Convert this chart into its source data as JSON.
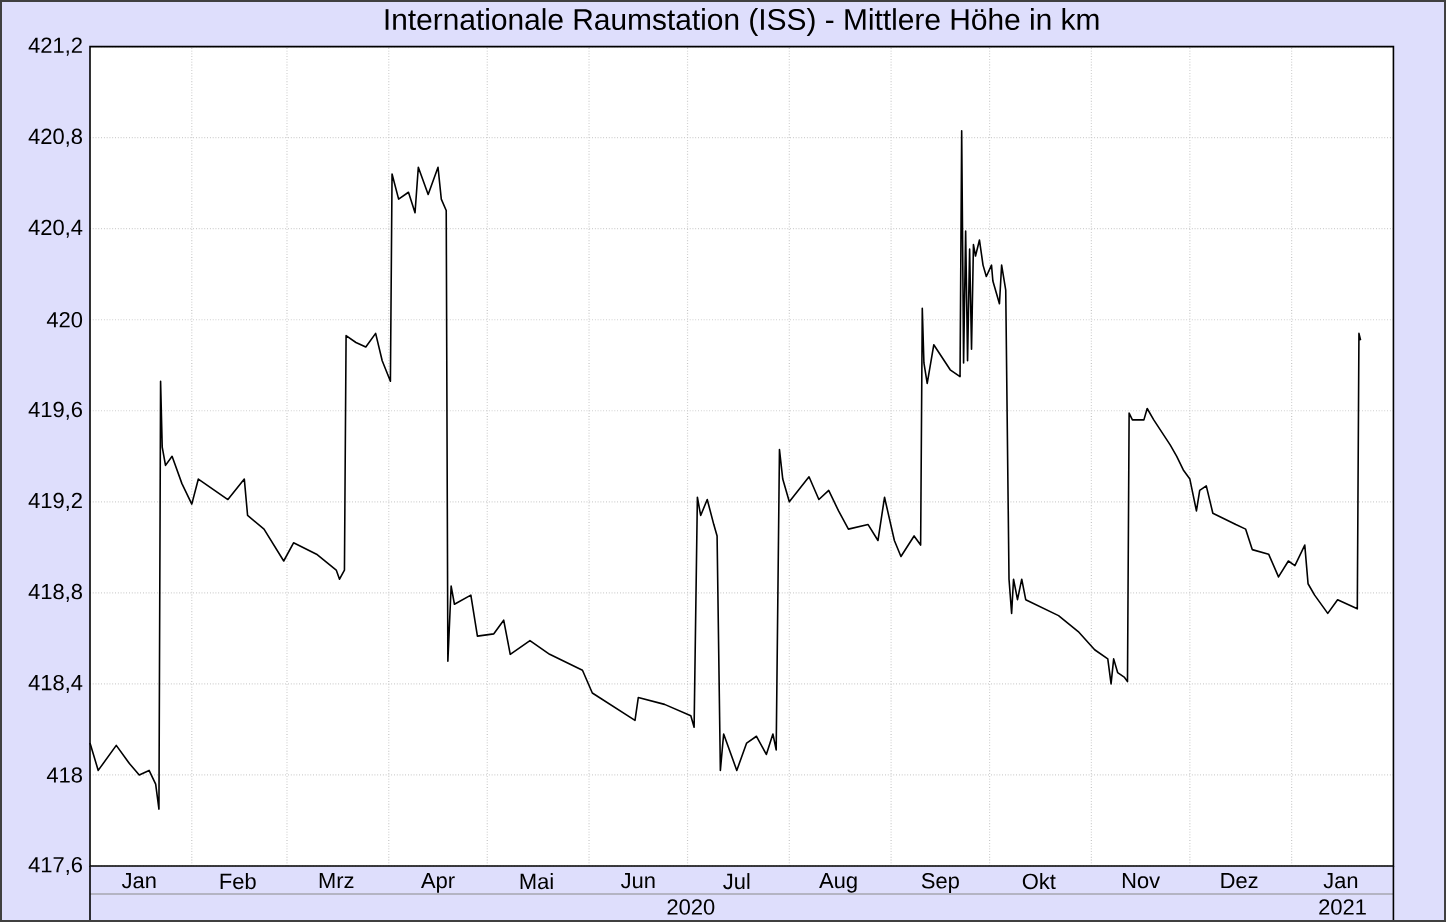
{
  "chart_data": {
    "type": "line",
    "title": "Internationale Raumstation (ISS) - Mittlere Höhe in km",
    "x": [
      "2020-01-01",
      "2020-01-03T12:00",
      "2020-01-09",
      "2020-01-13",
      "2020-01-16",
      "2020-01-19",
      "2020-01-21",
      "2020-01-22",
      "2020-01-22T12:00",
      "2020-01-23",
      "2020-01-24",
      "2020-01-26",
      "2020-01-29",
      "2020-02-01",
      "2020-02-03",
      "2020-02-12",
      "2020-02-17",
      "2020-02-18",
      "2020-02-23",
      "2020-02-29",
      "2020-03-03",
      "2020-03-10",
      "2020-03-16",
      "2020-03-17",
      "2020-03-18T12:00",
      "2020-03-19",
      "2020-03-22",
      "2020-03-25",
      "2020-03-28",
      "2020-03-30",
      "2020-04-01T12:00",
      "2020-04-02",
      "2020-04-04",
      "2020-04-07",
      "2020-04-09",
      "2020-04-10",
      "2020-04-13",
      "2020-04-16",
      "2020-04-17",
      "2020-04-18T12:00",
      "2020-04-19",
      "2020-04-20",
      "2020-04-21",
      "2020-04-26",
      "2020-04-28",
      "2020-05-03",
      "2020-05-06",
      "2020-05-08",
      "2020-05-14",
      "2020-05-20",
      "2020-05-30",
      "2020-06-02",
      "2020-06-15",
      "2020-06-16",
      "2020-06-24",
      "2020-07-02",
      "2020-07-03",
      "2020-07-04",
      "2020-07-05",
      "2020-07-07",
      "2020-07-09",
      "2020-07-10",
      "2020-07-11",
      "2020-07-12",
      "2020-07-16",
      "2020-07-19",
      "2020-07-22",
      "2020-07-25",
      "2020-07-27",
      "2020-07-28",
      "2020-07-29",
      "2020-07-30",
      "2020-08-01",
      "2020-08-07",
      "2020-08-10",
      "2020-08-13",
      "2020-08-16",
      "2020-08-19",
      "2020-08-25",
      "2020-08-28",
      "2020-08-30",
      "2020-09-02",
      "2020-09-04",
      "2020-09-08",
      "2020-09-10",
      "2020-09-10T12:00",
      "2020-09-11",
      "2020-09-12",
      "2020-09-14",
      "2020-09-19",
      "2020-09-22",
      "2020-09-22T12:00",
      "2020-09-23T02:00",
      "2020-09-23T17:00",
      "2020-09-24T07:00",
      "2020-09-24T22:00",
      "2020-09-25T12:00",
      "2020-09-26T02:00",
      "2020-09-26T17:00",
      "2020-09-27T22:00",
      "2020-09-29",
      "2020-09-30",
      "2020-10-01T14:00",
      "2020-10-02",
      "2020-10-04",
      "2020-10-04T16:00",
      "2020-10-05T22:00",
      "2020-10-06T22:00",
      "2020-10-07T17:00",
      "2020-10-08T07:00",
      "2020-10-09T12:00",
      "2020-10-10T19:00",
      "2020-10-12",
      "2020-10-22",
      "2020-10-28",
      "2020-11-02",
      "2020-11-06",
      "2020-11-07",
      "2020-11-07T19:00",
      "2020-11-09",
      "2020-11-11",
      "2020-11-12",
      "2020-11-12T12:00",
      "2020-11-13T12:00",
      "2020-11-17",
      "2020-11-18",
      "2020-11-20",
      "2020-11-25",
      "2020-11-27",
      "2020-11-29",
      "2020-12-01",
      "2020-12-03",
      "2020-12-04",
      "2020-12-06",
      "2020-12-08",
      "2020-12-15",
      "2020-12-18",
      "2020-12-20",
      "2020-12-25",
      "2020-12-28",
      "2020-12-31",
      "2021-01-02",
      "2021-01-05",
      "2021-01-06",
      "2021-01-08",
      "2021-01-12",
      "2021-01-15",
      "2021-01-21",
      "2021-01-21T12:00",
      "2021-01-22"
    ],
    "values": [
      418.14,
      418.02,
      418.13,
      418.05,
      418.0,
      418.02,
      417.96,
      417.85,
      419.73,
      419.44,
      419.36,
      419.4,
      419.28,
      419.19,
      419.3,
      419.21,
      419.3,
      419.14,
      419.08,
      418.94,
      419.02,
      418.97,
      418.9,
      418.86,
      418.9,
      419.93,
      419.9,
      419.88,
      419.94,
      419.82,
      419.73,
      420.64,
      420.53,
      420.56,
      420.47,
      420.67,
      420.55,
      420.67,
      420.53,
      420.48,
      418.5,
      418.83,
      418.75,
      418.79,
      418.61,
      418.62,
      418.68,
      418.53,
      418.59,
      418.53,
      418.46,
      418.36,
      418.24,
      418.34,
      418.31,
      418.26,
      418.21,
      419.22,
      419.14,
      419.21,
      419.1,
      419.05,
      418.02,
      418.18,
      418.02,
      418.14,
      418.17,
      418.09,
      418.18,
      418.11,
      419.43,
      419.3,
      419.2,
      419.31,
      419.21,
      419.25,
      419.16,
      419.08,
      419.1,
      419.03,
      419.22,
      419.03,
      418.96,
      419.05,
      419.01,
      420.05,
      419.81,
      419.72,
      419.89,
      419.78,
      419.75,
      420.83,
      419.81,
      420.39,
      419.82,
      420.31,
      419.87,
      420.33,
      420.28,
      420.35,
      420.24,
      420.19,
      420.24,
      420.17,
      420.07,
      420.24,
      420.13,
      418.86,
      418.71,
      418.86,
      418.77,
      418.86,
      418.77,
      418.7,
      418.63,
      418.55,
      418.51,
      418.4,
      418.51,
      418.45,
      418.43,
      418.41,
      419.59,
      419.56,
      419.56,
      419.61,
      419.56,
      419.45,
      419.4,
      419.34,
      419.3,
      419.16,
      419.25,
      419.27,
      419.15,
      419.1,
      419.08,
      418.99,
      418.97,
      418.87,
      418.94,
      418.92,
      419.01,
      418.84,
      418.79,
      418.71,
      418.77,
      418.73,
      419.94,
      419.91
    ],
    "color": "#000000",
    "xlim": [
      "2020-01-01",
      "2021-02-01"
    ],
    "xticks": [
      {
        "value": "2020-02-01",
        "label": null
      },
      {
        "value": "2020-03-01",
        "label": null
      },
      {
        "value": "2020-04-01",
        "label": null
      },
      {
        "value": "2020-05-01",
        "label": null
      },
      {
        "value": "2020-06-01",
        "label": null
      },
      {
        "value": "2020-07-01",
        "label": null
      },
      {
        "value": "2020-08-01",
        "label": null
      },
      {
        "value": "2020-09-01",
        "label": null
      },
      {
        "value": "2020-10-01",
        "label": null
      },
      {
        "value": "2020-11-01",
        "label": null
      },
      {
        "value": "2020-12-01",
        "label": null
      },
      {
        "value": "2021-01-01",
        "label": null
      },
      {
        "value": "2020-01-16",
        "label": "Jan"
      },
      {
        "value": "2020-02-15",
        "label": "Feb"
      },
      {
        "value": "2020-03-16",
        "label": "Mrz"
      },
      {
        "value": "2020-04-16",
        "label": "Apr"
      },
      {
        "value": "2020-05-16",
        "label": "Mai"
      },
      {
        "value": "2020-06-16",
        "label": "Jun"
      },
      {
        "value": "2020-07-16",
        "label": "Jul"
      },
      {
        "value": "2020-08-16",
        "label": "Aug"
      },
      {
        "value": "2020-09-16",
        "label": "Sep"
      },
      {
        "value": "2020-10-16",
        "label": "Okt"
      },
      {
        "value": "2020-11-16",
        "label": "Nov"
      },
      {
        "value": "2020-12-16",
        "label": "Dez"
      },
      {
        "value": "2021-01-16",
        "label": "Jan"
      }
    ],
    "ylim": [
      417.6,
      421.2
    ],
    "yticks": [
      {
        "value": 417.6,
        "label": "417,6"
      },
      418,
      {
        "value": 418.4,
        "label": "418,4"
      },
      {
        "value": 418.8,
        "label": "418,8"
      },
      {
        "value": 419.2,
        "label": "419,2"
      },
      {
        "value": 419.6,
        "label": "419,6"
      },
      420,
      {
        "value": 420.4,
        "label": "420,4"
      },
      {
        "value": 420.8,
        "label": "420,8"
      },
      {
        "value": 421.2,
        "label": "421,2"
      }
    ],
    "grid": true,
    "annotations": [
      "2020",
      "2021"
    ]
  }
}
